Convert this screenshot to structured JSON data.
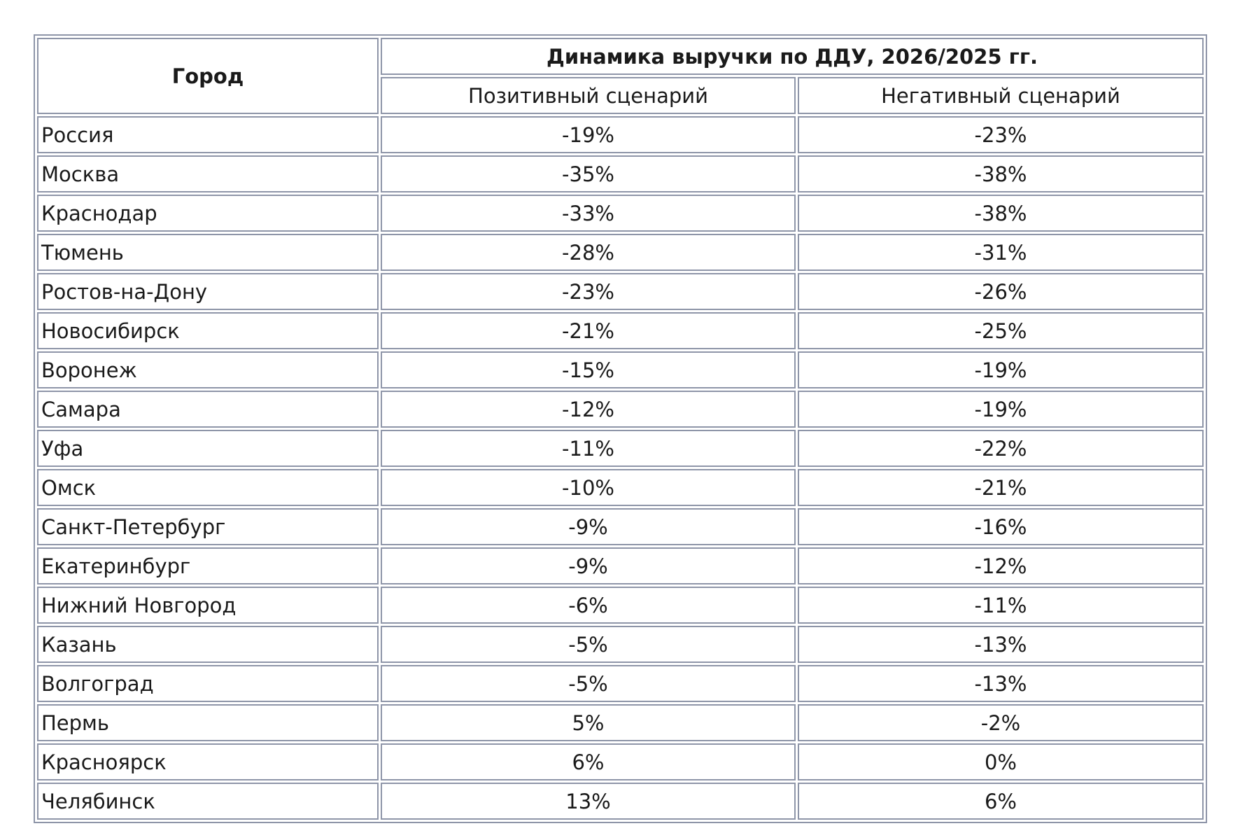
{
  "table": {
    "header": {
      "city": "Город",
      "group": "Динамика выручки по ДДУ, 2026/2025 гг.",
      "columns": [
        "Позитивный сценарий",
        "Негативный сценарий"
      ]
    },
    "rows": [
      [
        "Россия",
        "-19%",
        "-23%"
      ],
      [
        "Москва",
        "-35%",
        "-38%"
      ],
      [
        "Краснодар",
        "-33%",
        "-38%"
      ],
      [
        "Тюмень",
        "-28%",
        "-31%"
      ],
      [
        "Ростов-на-Дону",
        "-23%",
        "-26%"
      ],
      [
        "Новосибирск",
        "-21%",
        "-25%"
      ],
      [
        "Воронеж",
        "-15%",
        "-19%"
      ],
      [
        "Самара",
        "-12%",
        "-19%"
      ],
      [
        "Уфа",
        "-11%",
        "-22%"
      ],
      [
        "Омск",
        "-10%",
        "-21%"
      ],
      [
        "Санкт-Петербург",
        "-9%",
        "-16%"
      ],
      [
        "Екатеринбург",
        "-9%",
        "-12%"
      ],
      [
        "Нижний Новгород",
        "-6%",
        "-11%"
      ],
      [
        "Казань",
        "-5%",
        "-13%"
      ],
      [
        "Волгоград",
        "-5%",
        "-13%"
      ],
      [
        "Пермь",
        "5%",
        "-2%"
      ],
      [
        "Красноярск",
        "6%",
        "0%"
      ],
      [
        "Челябинск",
        "13%",
        "6%"
      ]
    ]
  }
}
